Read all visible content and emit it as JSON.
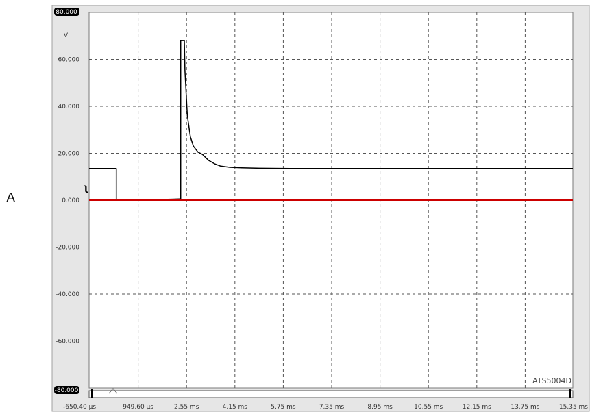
{
  "panel_label": "A",
  "chart_data": {
    "type": "line",
    "title": "",
    "ylabel": "V",
    "xlabel": "",
    "instrument": "ATS5004D",
    "ylim": [
      -80,
      80
    ],
    "yticks": [
      "80.000",
      "60.000",
      "40.000",
      "20.000",
      "0.000",
      "-20.000",
      "-40.000",
      "-60.000",
      "-80.000"
    ],
    "ytick_values": [
      80,
      60,
      40,
      20,
      0,
      -20,
      -40,
      -60,
      -80
    ],
    "xlim_ms": [
      -0.6504,
      15.35
    ],
    "xticks": [
      "-650.40 µs",
      "949.60 µs",
      "2.55 ms",
      "4.15 ms",
      "5.75 ms",
      "7.35 ms",
      "8.95 ms",
      "10.55 ms",
      "12.15 ms",
      "13.75 ms",
      "15.35 ms"
    ],
    "xtick_values_ms": [
      -0.6504,
      0.9496,
      2.55,
      4.15,
      5.75,
      7.35,
      8.95,
      10.55,
      12.15,
      13.75,
      15.35
    ],
    "grid": true,
    "colors": {
      "series": "#000000",
      "reference": "#cc0000",
      "background": "#ffffff",
      "frame": "#e6e6e6"
    },
    "series": [
      {
        "x_ms": [
          -0.6504,
          0.25,
          0.25,
          1.5,
          2.35,
          2.38,
          2.38,
          2.5,
          2.52,
          2.6,
          2.7,
          2.8,
          2.95,
          3.1,
          3.3,
          3.5,
          3.7,
          4.0,
          4.4,
          5.0,
          6.0,
          8.0,
          10.0,
          12.0,
          14.0,
          15.35
        ],
        "y": [
          13.5,
          13.5,
          0.0,
          0.2,
          0.5,
          0.5,
          68.0,
          68.0,
          55.0,
          36.0,
          27.0,
          23.0,
          20.5,
          19.5,
          17.0,
          15.5,
          14.5,
          14.0,
          13.8,
          13.6,
          13.5,
          13.5,
          13.5,
          13.5,
          13.5,
          13.5
        ]
      },
      {
        "x_ms": [
          -0.6504,
          15.35
        ],
        "y": [
          0.0,
          0.0
        ]
      }
    ]
  }
}
